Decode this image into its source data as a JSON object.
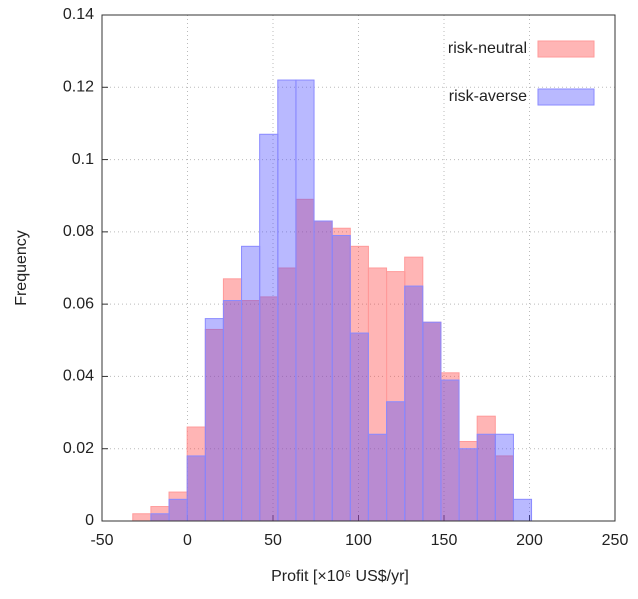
{
  "chart_data": {
    "type": "histogram",
    "x_label": "Profit [×10⁶ US$/yr]",
    "y_label": "Frequency",
    "bins": [
      -32,
      -21.4,
      -10.8,
      -0.2,
      10.4,
      21,
      31.6,
      42.2,
      52.8,
      63.4,
      74,
      84.6,
      95.2,
      105.8,
      116.4,
      127,
      137.6,
      148.2,
      158.8,
      169.4,
      180,
      190.6,
      201.2
    ],
    "series": [
      {
        "name": "risk-neutral",
        "color": "rgba(255,60,60,0.38)",
        "edge": "#ff9a9a",
        "values": [
          0.002,
          0.004,
          0.008,
          0.026,
          0.053,
          0.067,
          0.061,
          0.062,
          0.07,
          0.089,
          0.083,
          0.081,
          0.076,
          0.07,
          0.069,
          0.073,
          0.055,
          0.041,
          0.022,
          0.029,
          0.018,
          0
        ]
      },
      {
        "name": "risk-averse",
        "color": "rgba(70,70,255,0.38)",
        "edge": "#8a8aff",
        "values": [
          0,
          0.002,
          0.006,
          0.018,
          0.056,
          0.061,
          0.076,
          0.107,
          0.122,
          0.122,
          0.083,
          0.079,
          0.052,
          0.024,
          0.033,
          0.065,
          0.055,
          0.039,
          0.02,
          0.024,
          0.024,
          0.006
        ]
      }
    ],
    "xlim": [
      -50,
      250
    ],
    "ylim": [
      0,
      0.14
    ],
    "xticks": [
      -50,
      0,
      50,
      100,
      150,
      200,
      250
    ],
    "yticks": [
      0,
      0.02,
      0.04,
      0.06,
      0.08,
      0.1,
      0.12,
      0.14
    ],
    "grid": true,
    "legend": "upper-right"
  }
}
